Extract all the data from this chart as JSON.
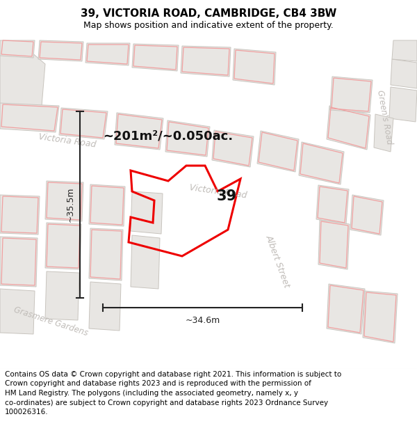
{
  "title": "39, VICTORIA ROAD, CAMBRIDGE, CB4 3BW",
  "subtitle": "Map shows position and indicative extent of the property.",
  "footer": "Contains OS data © Crown copyright and database right 2021. This information is subject to\nCrown copyright and database rights 2023 and is reproduced with the permission of\nHM Land Registry. The polygons (including the associated geometry, namely x, y\nco-ordinates) are subject to Crown copyright and database rights 2023 Ordnance Survey\n100026316.",
  "area_label": "~201m²/~0.050ac.",
  "number_label": "39",
  "dim_h": "~35.5m",
  "dim_w": "~34.6m",
  "map_bg": "#f7f5f3",
  "road_color": "#ffffff",
  "building_fill": "#e8e6e3",
  "building_stroke": "#c8c4be",
  "red_prop_color": "#ee0000",
  "red_outline_color": "#f0a0a0",
  "street_label_color": "#c0bcb8",
  "dim_color": "#222222",
  "title_fontsize": 11,
  "subtitle_fontsize": 9,
  "footer_fontsize": 7.5
}
